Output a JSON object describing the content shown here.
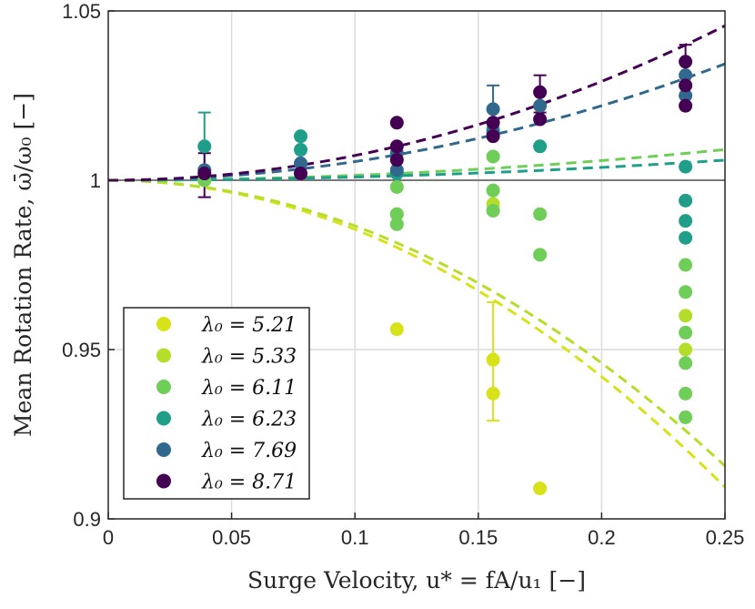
{
  "chart_data": {
    "type": "scatter",
    "title": "",
    "xlabel": "Surge Velocity, u* = fA/u₁ [−]",
    "ylabel": "Mean Rotation Rate, ω̄/ω₀ [−]",
    "xlim": [
      0,
      0.25
    ],
    "ylim": [
      0.9,
      1.05
    ],
    "grid": true,
    "legend_position": "bottom-left",
    "x_ticks": [
      "0",
      "0.05",
      "0.1",
      "0.15",
      "0.2",
      "0.25"
    ],
    "y_ticks": [
      "0.9",
      "0.95",
      "1",
      "1.05"
    ],
    "x_tick_values": [
      0,
      0.05,
      0.1,
      0.15,
      0.2,
      0.25
    ],
    "y_tick_values": [
      0.9,
      0.95,
      1.0,
      1.05
    ],
    "series": [
      {
        "name": "λ0 = 5.21",
        "legend_label": "λ₀ = 5.21",
        "color": "#d8e219",
        "points": [
          [
            0.039,
            1.0
          ],
          [
            0.117,
            0.956
          ],
          [
            0.156,
            0.947
          ],
          [
            0.156,
            0.937
          ],
          [
            0.175,
            0.909
          ]
        ],
        "errorbars": [
          [
            0.156,
            0.929,
            0.964
          ]
        ],
        "fit_coef": -1.45
      },
      {
        "name": "λ0 = 5.33",
        "legend_label": "λ₀ = 5.33",
        "color": "#b5de2b",
        "points": [
          [
            0.039,
            1.0
          ],
          [
            0.117,
            0.99
          ],
          [
            0.156,
            0.993
          ],
          [
            0.234,
            0.96
          ],
          [
            0.234,
            0.95
          ]
        ],
        "errorbars": [],
        "fit_coef": -1.35
      },
      {
        "name": "λ0 = 6.11",
        "legend_label": "λ₀ = 6.11",
        "color": "#6ece58",
        "points": [
          [
            0.039,
            1.0
          ],
          [
            0.117,
            0.998
          ],
          [
            0.117,
            0.99
          ],
          [
            0.117,
            0.987
          ],
          [
            0.156,
            1.007
          ],
          [
            0.156,
            0.997
          ],
          [
            0.156,
            0.991
          ],
          [
            0.175,
            0.99
          ],
          [
            0.175,
            0.978
          ],
          [
            0.234,
            0.975
          ],
          [
            0.234,
            0.967
          ],
          [
            0.234,
            0.955
          ],
          [
            0.234,
            0.946
          ],
          [
            0.234,
            0.937
          ],
          [
            0.234,
            0.93
          ]
        ],
        "errorbars": [],
        "fit_coef": 0.145
      },
      {
        "name": "λ0 = 6.23",
        "legend_label": "λ₀ = 6.23",
        "color": "#1f9e89",
        "points": [
          [
            0.039,
            1.01
          ],
          [
            0.078,
            1.013
          ],
          [
            0.078,
            1.009
          ],
          [
            0.117,
            1.002
          ],
          [
            0.156,
            1.015
          ],
          [
            0.175,
            1.01
          ],
          [
            0.234,
            1.004
          ],
          [
            0.234,
            0.994
          ],
          [
            0.234,
            0.988
          ],
          [
            0.234,
            0.983
          ]
        ],
        "errorbars": [
          [
            0.039,
            1.0,
            1.02
          ]
        ],
        "fit_coef": 0.095
      },
      {
        "name": "λ0 = 7.69",
        "legend_label": "λ₀ = 7.69",
        "color": "#31688e",
        "points": [
          [
            0.039,
            1.003
          ],
          [
            0.078,
            1.005
          ],
          [
            0.117,
            1.008
          ],
          [
            0.117,
            1.003
          ],
          [
            0.156,
            1.021
          ],
          [
            0.156,
            1.014
          ],
          [
            0.175,
            1.022
          ],
          [
            0.234,
            1.031
          ],
          [
            0.234,
            1.025
          ]
        ],
        "errorbars": [
          [
            0.156,
            1.013,
            1.028
          ]
        ],
        "fit_coef": 0.55
      },
      {
        "name": "λ0 = 8.71",
        "legend_label": "λ₀ = 8.71",
        "color": "#440154",
        "points": [
          [
            0.039,
            1.002
          ],
          [
            0.078,
            1.002
          ],
          [
            0.117,
            1.017
          ],
          [
            0.117,
            1.01
          ],
          [
            0.117,
            1.006
          ],
          [
            0.156,
            1.017
          ],
          [
            0.156,
            1.013
          ],
          [
            0.175,
            1.026
          ],
          [
            0.175,
            1.018
          ],
          [
            0.234,
            1.035
          ],
          [
            0.234,
            1.028
          ],
          [
            0.234,
            1.022
          ]
        ],
        "errorbars": [
          [
            0.039,
            0.995,
            1.008
          ],
          [
            0.175,
            1.02,
            1.031
          ],
          [
            0.234,
            1.022,
            1.04
          ]
        ],
        "fit_coef": 0.73
      }
    ],
    "reference_line": {
      "y": 1.0,
      "color": "#7a7a7a"
    }
  }
}
